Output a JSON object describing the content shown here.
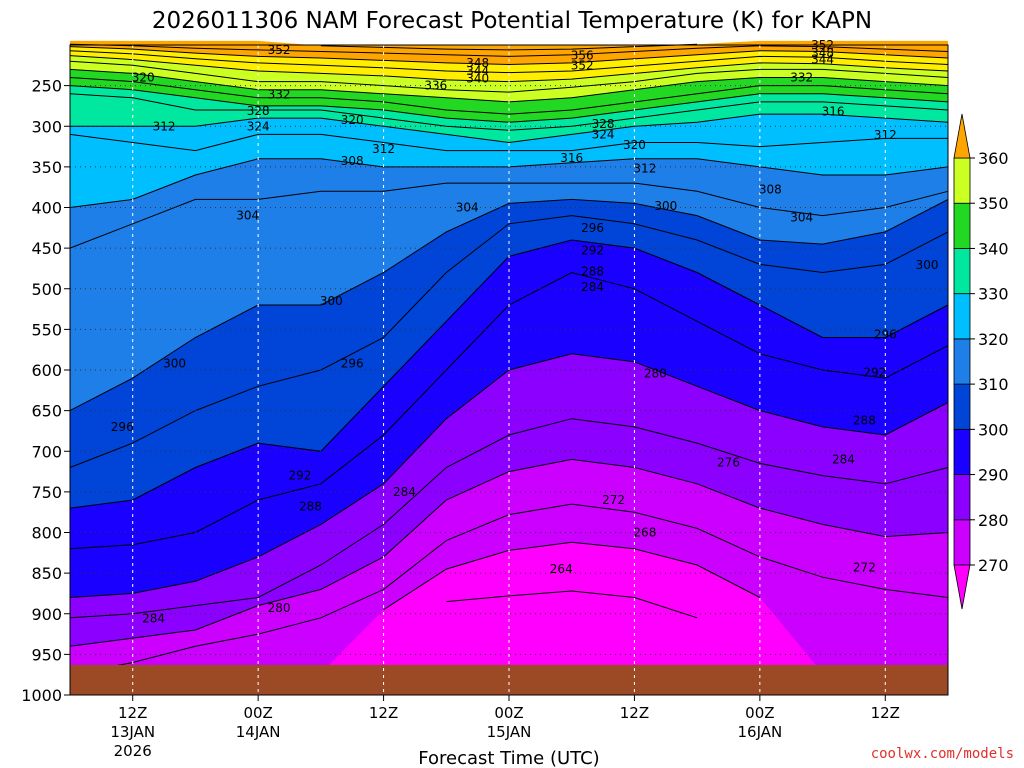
{
  "colors": {
    "ground": "#9b4a25",
    "bands": [
      "#ff00ff",
      "#cc00ff",
      "#8c00ff",
      "#1a00ff",
      "#0044d8",
      "#1e7fe8",
      "#00bfff",
      "#00e8a0",
      "#22d822",
      "#ccff22",
      "#ffee00",
      "#ffa500"
    ],
    "credit": "#e0302a"
  },
  "chart_data": {
    "type": "contour",
    "title": "2026011306 NAM Forecast Potential Temperature (K) for KAPN",
    "xlabel": "Forecast Time (UTC)",
    "credit": "coolwx.com/models",
    "ylabels": [
      "250",
      "300",
      "350",
      "400",
      "450",
      "500",
      "550",
      "600",
      "650",
      "700",
      "750",
      "800",
      "850",
      "900",
      "950",
      "1000"
    ],
    "ylevels": [
      250,
      300,
      350,
      400,
      450,
      500,
      550,
      600,
      650,
      700,
      750,
      800,
      850,
      900,
      950,
      1000
    ],
    "xtick_hours": [
      6,
      18,
      30,
      42,
      54,
      66,
      78
    ],
    "xlabels": [
      {
        "l1": "12Z",
        "l2": "13JAN",
        "l3": "2026"
      },
      {
        "l1": "00Z",
        "l2": "14JAN",
        "l3": ""
      },
      {
        "l1": "12Z",
        "l2": "",
        "l3": ""
      },
      {
        "l1": "00Z",
        "l2": "15JAN",
        "l3": ""
      },
      {
        "l1": "12Z",
        "l2": "",
        "l3": ""
      },
      {
        "l1": "00Z",
        "l2": "16JAN",
        "l3": ""
      },
      {
        "l1": "12Z",
        "l2": "",
        "l3": ""
      }
    ],
    "colorbar_labels": [
      "270",
      "280",
      "290",
      "300",
      "310",
      "320",
      "330",
      "340",
      "350",
      "360"
    ],
    "colorbar_levels": [
      270,
      280,
      290,
      300,
      310,
      320,
      330,
      340,
      350,
      360
    ],
    "x_hours_range": [
      0,
      84
    ],
    "p_range": [
      200,
      1000
    ],
    "surface_pressure_mb": 963,
    "profile_hours": [
      0,
      6,
      12,
      18,
      24,
      30,
      36,
      42,
      48,
      54,
      60,
      66,
      72,
      78,
      84
    ],
    "isentropes": [
      {
        "theta": 264,
        "p": [
          null,
          null,
          null,
          null,
          null,
          null,
          885,
          878,
          872,
          880,
          905,
          null,
          null,
          null,
          null
        ]
      },
      {
        "theta": 268,
        "p": [
          null,
          null,
          null,
          null,
          null,
          895,
          845,
          822,
          812,
          820,
          840,
          880,
          null,
          null,
          null
        ]
      },
      {
        "theta": 272,
        "p": [
          975,
          960,
          940,
          925,
          905,
          870,
          810,
          778,
          765,
          775,
          795,
          830,
          855,
          870,
          880
        ]
      },
      {
        "theta": 276,
        "p": [
          940,
          930,
          920,
          890,
          870,
          830,
          760,
          725,
          710,
          720,
          740,
          770,
          790,
          805,
          800
        ]
      },
      {
        "theta": 280,
        "p": [
          905,
          900,
          890,
          880,
          840,
          790,
          720,
          680,
          660,
          670,
          690,
          715,
          730,
          740,
          720
        ]
      },
      {
        "theta": 284,
        "p": [
          880,
          875,
          860,
          830,
          790,
          740,
          660,
          600,
          580,
          590,
          620,
          650,
          670,
          680,
          640
        ]
      },
      {
        "theta": 288,
        "p": [
          820,
          815,
          800,
          760,
          740,
          680,
          600,
          520,
          480,
          500,
          540,
          580,
          600,
          610,
          570
        ]
      },
      {
        "theta": 292,
        "p": [
          770,
          760,
          720,
          690,
          700,
          620,
          540,
          460,
          440,
          450,
          480,
          520,
          560,
          560,
          520
        ]
      },
      {
        "theta": 296,
        "p": [
          720,
          690,
          650,
          620,
          600,
          560,
          480,
          420,
          410,
          420,
          440,
          470,
          480,
          470,
          430
        ]
      },
      {
        "theta": 300,
        "p": [
          650,
          610,
          560,
          520,
          520,
          480,
          430,
          395,
          390,
          395,
          410,
          440,
          445,
          430,
          390
        ]
      },
      {
        "theta": 304,
        "p": [
          450,
          420,
          390,
          390,
          380,
          380,
          370,
          370,
          370,
          370,
          380,
          400,
          410,
          400,
          380
        ]
      },
      {
        "theta": 308,
        "p": [
          400,
          390,
          360,
          340,
          340,
          350,
          350,
          350,
          345,
          340,
          340,
          350,
          360,
          360,
          350
        ]
      },
      {
        "theta": 312,
        "p": [
          310,
          320,
          330,
          310,
          310,
          320,
          330,
          330,
          330,
          320,
          320,
          325,
          320,
          315,
          315
        ]
      },
      {
        "theta": 316,
        "p": [
          300,
          300,
          300,
          290,
          290,
          300,
          310,
          320,
          310,
          300,
          295,
          285,
          285,
          290,
          295
        ]
      },
      {
        "theta": 320,
        "p": [
          260,
          265,
          280,
          280,
          280,
          290,
          300,
          305,
          300,
          290,
          280,
          270,
          270,
          275,
          280
        ]
      },
      {
        "theta": 324,
        "p": [
          250,
          255,
          265,
          275,
          275,
          280,
          290,
          295,
          290,
          280,
          270,
          260,
          260,
          265,
          270
        ]
      },
      {
        "theta": 328,
        "p": [
          240,
          245,
          255,
          265,
          265,
          270,
          280,
          285,
          280,
          270,
          260,
          250,
          250,
          255,
          260
        ]
      },
      {
        "theta": 332,
        "p": [
          230,
          235,
          245,
          255,
          255,
          260,
          265,
          270,
          265,
          255,
          245,
          240,
          240,
          245,
          250
        ]
      },
      {
        "theta": 336,
        "p": [
          220,
          225,
          235,
          245,
          245,
          250,
          255,
          258,
          252,
          245,
          235,
          230,
          230,
          235,
          240
        ]
      },
      {
        "theta": 340,
        "p": [
          213,
          218,
          225,
          232,
          235,
          238,
          243,
          245,
          242,
          235,
          228,
          222,
          223,
          228,
          232
        ]
      },
      {
        "theta": 344,
        "p": [
          207,
          211,
          217,
          222,
          225,
          228,
          232,
          234,
          232,
          226,
          220,
          214,
          215,
          220,
          224
        ]
      },
      {
        "theta": 348,
        "p": [
          202,
          205,
          210,
          214,
          216,
          219,
          222,
          224,
          222,
          217,
          212,
          207,
          208,
          212,
          216
        ]
      },
      {
        "theta": 352,
        "p": [
          199,
          201,
          204,
          206,
          208,
          210,
          212,
          214,
          212,
          208,
          204,
          201,
          202,
          205,
          208
        ]
      },
      {
        "theta": 356,
        "p": [
          null,
          null,
          null,
          null,
          201,
          203,
          205,
          206,
          205,
          202,
          199,
          null,
          null,
          null,
          null
        ]
      }
    ],
    "contour_labels": [
      {
        "text": "352",
        "h": 20,
        "p": 206
      },
      {
        "text": "348",
        "h": 39,
        "p": 222
      },
      {
        "text": "344",
        "h": 39,
        "p": 232
      },
      {
        "text": "340",
        "h": 39,
        "p": 241
      },
      {
        "text": "336",
        "h": 35,
        "p": 250
      },
      {
        "text": "356",
        "h": 49,
        "p": 213
      },
      {
        "text": "352",
        "h": 49,
        "p": 225
      },
      {
        "text": "352",
        "h": 72,
        "p": 200
      },
      {
        "text": "348",
        "h": 72,
        "p": 210
      },
      {
        "text": "344",
        "h": 72,
        "p": 218
      },
      {
        "text": "332",
        "h": 70,
        "p": 240
      },
      {
        "text": "320",
        "h": 7,
        "p": 240
      },
      {
        "text": "332",
        "h": 20,
        "p": 261
      },
      {
        "text": "328",
        "h": 18,
        "p": 281
      },
      {
        "text": "324",
        "h": 18,
        "p": 300
      },
      {
        "text": "320",
        "h": 27,
        "p": 292
      },
      {
        "text": "312",
        "h": 9,
        "p": 300
      },
      {
        "text": "316",
        "h": 73,
        "p": 282
      },
      {
        "text": "312",
        "h": 78,
        "p": 311
      },
      {
        "text": "328",
        "h": 51,
        "p": 297
      },
      {
        "text": "324",
        "h": 51,
        "p": 310
      },
      {
        "text": "320",
        "h": 54,
        "p": 323
      },
      {
        "text": "316",
        "h": 48,
        "p": 339
      },
      {
        "text": "312",
        "h": 55,
        "p": 352
      },
      {
        "text": "312",
        "h": 30,
        "p": 328
      },
      {
        "text": "308",
        "h": 27,
        "p": 343
      },
      {
        "text": "308",
        "h": 67,
        "p": 378
      },
      {
        "text": "304",
        "h": 17,
        "p": 410
      },
      {
        "text": "304",
        "h": 38,
        "p": 400
      },
      {
        "text": "300",
        "h": 57,
        "p": 398
      },
      {
        "text": "304",
        "h": 70,
        "p": 412
      },
      {
        "text": "296",
        "h": 50,
        "p": 425
      },
      {
        "text": "292",
        "h": 50,
        "p": 453
      },
      {
        "text": "288",
        "h": 50,
        "p": 479
      },
      {
        "text": "284",
        "h": 50,
        "p": 498
      },
      {
        "text": "300",
        "h": 25,
        "p": 515
      },
      {
        "text": "300",
        "h": 10,
        "p": 592
      },
      {
        "text": "296",
        "h": 27,
        "p": 592
      },
      {
        "text": "300",
        "h": 82,
        "p": 471
      },
      {
        "text": "296",
        "h": 78,
        "p": 556
      },
      {
        "text": "292",
        "h": 77,
        "p": 603
      },
      {
        "text": "288",
        "h": 76,
        "p": 662
      },
      {
        "text": "280",
        "h": 56,
        "p": 604
      },
      {
        "text": "284",
        "h": 74,
        "p": 710
      },
      {
        "text": "276",
        "h": 63,
        "p": 714
      },
      {
        "text": "272",
        "h": 52,
        "p": 760
      },
      {
        "text": "268",
        "h": 55,
        "p": 800
      },
      {
        "text": "264",
        "h": 47,
        "p": 845
      },
      {
        "text": "272",
        "h": 76,
        "p": 843
      },
      {
        "text": "296",
        "h": 5,
        "p": 670
      },
      {
        "text": "292",
        "h": 22,
        "p": 730
      },
      {
        "text": "288",
        "h": 23,
        "p": 768
      },
      {
        "text": "284",
        "h": 32,
        "p": 750
      },
      {
        "text": "280",
        "h": 20,
        "p": 893
      },
      {
        "text": "284",
        "h": 8,
        "p": 906
      }
    ]
  }
}
